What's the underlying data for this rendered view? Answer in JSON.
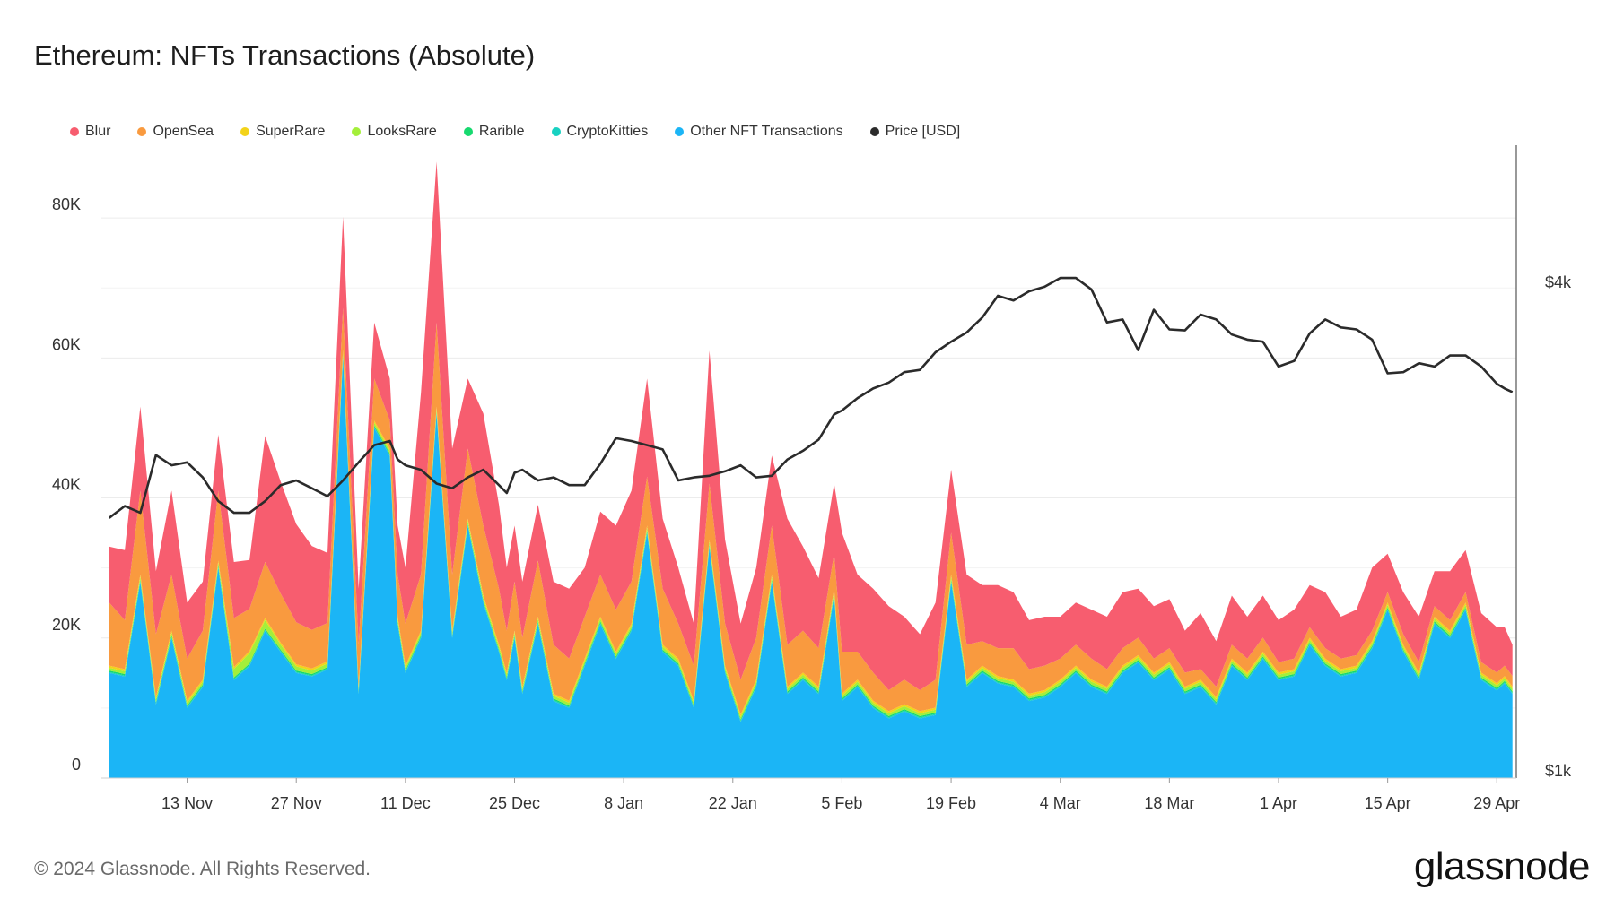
{
  "page": {
    "title": "Ethereum: NFTs Transactions (Absolute)",
    "footer": "© 2024 Glassnode. All Rights Reserved.",
    "brand": "glassnode"
  },
  "legend": [
    {
      "label": "Blur",
      "color": "#f75d6f"
    },
    {
      "label": "OpenSea",
      "color": "#f99a3f"
    },
    {
      "label": "SuperRare",
      "color": "#f3d31a"
    },
    {
      "label": "LooksRare",
      "color": "#a4ef3a"
    },
    {
      "label": "Rarible",
      "color": "#17d96f"
    },
    {
      "label": "CryptoKitties",
      "color": "#18d1c1"
    },
    {
      "label": "Other NFT Transactions",
      "color": "#1bb5f6"
    },
    {
      "label": "Price [USD]",
      "color": "#2b2b2b"
    }
  ],
  "chart_data": {
    "type": "area",
    "stacked": true,
    "grid": true,
    "x_ticks": [
      "13 Nov",
      "27 Nov",
      "11 Dec",
      "25 Dec",
      "8 Jan",
      "22 Jan",
      "5 Feb",
      "19 Feb",
      "4 Mar",
      "18 Mar",
      "1 Apr",
      "15 Apr",
      "29 Apr"
    ],
    "y_left": {
      "ticks": [
        "0",
        "20K",
        "40K",
        "60K",
        "80K"
      ],
      "range": [
        0,
        90000
      ]
    },
    "y_right": {
      "ticks": [
        "$1k",
        "$4k"
      ],
      "scale": "log"
    },
    "x": [
      "2023-11-03",
      "2023-11-05",
      "2023-11-07",
      "2023-11-09",
      "2023-11-11",
      "2023-11-13",
      "2023-11-15",
      "2023-11-17",
      "2023-11-19",
      "2023-11-21",
      "2023-11-23",
      "2023-11-25",
      "2023-11-27",
      "2023-11-29",
      "2023-12-01",
      "2023-12-03",
      "2023-12-05",
      "2023-12-07",
      "2023-12-09",
      "2023-12-10",
      "2023-12-11",
      "2023-12-13",
      "2023-12-15",
      "2023-12-17",
      "2023-12-19",
      "2023-12-21",
      "2023-12-23",
      "2023-12-24",
      "2023-12-25",
      "2023-12-26",
      "2023-12-28",
      "2023-12-30",
      "2024-01-01",
      "2024-01-03",
      "2024-01-05",
      "2024-01-07",
      "2024-01-09",
      "2024-01-11",
      "2024-01-13",
      "2024-01-15",
      "2024-01-17",
      "2024-01-19",
      "2024-01-21",
      "2024-01-23",
      "2024-01-25",
      "2024-01-27",
      "2024-01-29",
      "2024-01-31",
      "2024-02-02",
      "2024-02-04",
      "2024-02-05",
      "2024-02-07",
      "2024-02-09",
      "2024-02-11",
      "2024-02-13",
      "2024-02-15",
      "2024-02-17",
      "2024-02-19",
      "2024-02-21",
      "2024-02-23",
      "2024-02-25",
      "2024-02-27",
      "2024-02-29",
      "2024-03-02",
      "2024-03-04",
      "2024-03-06",
      "2024-03-08",
      "2024-03-10",
      "2024-03-12",
      "2024-03-14",
      "2024-03-16",
      "2024-03-18",
      "2024-03-20",
      "2024-03-22",
      "2024-03-24",
      "2024-03-26",
      "2024-03-28",
      "2024-03-30",
      "2024-04-01",
      "2024-04-03",
      "2024-04-05",
      "2024-04-07",
      "2024-04-09",
      "2024-04-11",
      "2024-04-13",
      "2024-04-15",
      "2024-04-17",
      "2024-04-19",
      "2024-04-21",
      "2024-04-23",
      "2024-04-25",
      "2024-04-27",
      "2024-04-29",
      "2024-04-30",
      "2024-05-01"
    ],
    "series": [
      {
        "name": "Other NFT Transactions",
        "values": [
          15000,
          14500,
          28000,
          10500,
          20000,
          10000,
          13000,
          30000,
          14000,
          16000,
          21000,
          18000,
          15000,
          14500,
          15500,
          60000,
          12000,
          50000,
          46000,
          22000,
          15000,
          20000,
          52000,
          20000,
          36000,
          25000,
          18000,
          14000,
          20000,
          12000,
          22000,
          11000,
          10000,
          16000,
          22000,
          17000,
          21000,
          35000,
          18000,
          16000,
          10000,
          33000,
          15000,
          8000,
          13000,
          28000,
          12000,
          14000,
          12000,
          26000,
          11000,
          13000,
          10000,
          8500,
          9500,
          8500,
          9000,
          28000,
          13000,
          15000,
          13500,
          13000,
          11000,
          11500,
          13000,
          15000,
          13000,
          12000,
          15000,
          16500,
          14000,
          15500,
          12000,
          13000,
          10500,
          16000,
          14000,
          17000,
          14000,
          14500,
          19000,
          16000,
          14500,
          15000,
          18500,
          24000,
          18000,
          14000,
          22000,
          20000,
          24000,
          14000,
          12500,
          13500,
          12000
        ]
      },
      {
        "name": "CryptoKitties",
        "values": [
          150,
          150,
          150,
          150,
          150,
          150,
          150,
          150,
          150,
          150,
          150,
          150,
          150,
          150,
          150,
          150,
          150,
          150,
          150,
          150,
          150,
          150,
          150,
          150,
          150,
          150,
          150,
          150,
          150,
          150,
          150,
          150,
          150,
          150,
          150,
          150,
          150,
          150,
          150,
          150,
          150,
          150,
          150,
          150,
          150,
          150,
          150,
          150,
          150,
          150,
          150,
          150,
          150,
          150,
          150,
          150,
          150,
          150,
          150,
          150,
          150,
          150,
          150,
          150,
          150,
          150,
          150,
          150,
          150,
          150,
          150,
          150,
          150,
          150,
          150,
          150,
          150,
          150,
          150,
          150,
          150,
          150,
          150,
          150,
          150,
          150,
          150,
          150,
          150,
          150,
          150,
          150,
          150,
          150,
          150
        ]
      },
      {
        "name": "Rarible",
        "values": [
          200,
          200,
          200,
          200,
          200,
          200,
          200,
          200,
          200,
          200,
          200,
          200,
          200,
          200,
          200,
          200,
          200,
          200,
          200,
          200,
          200,
          200,
          200,
          200,
          200,
          200,
          200,
          200,
          200,
          200,
          200,
          200,
          200,
          200,
          200,
          200,
          200,
          200,
          200,
          200,
          200,
          200,
          200,
          200,
          200,
          200,
          200,
          200,
          200,
          200,
          200,
          200,
          200,
          200,
          200,
          200,
          200,
          200,
          200,
          200,
          200,
          200,
          200,
          200,
          200,
          200,
          200,
          200,
          200,
          200,
          200,
          200,
          200,
          200,
          200,
          200,
          200,
          200,
          200,
          200,
          200,
          200,
          200,
          200,
          200,
          200,
          200,
          200,
          200,
          200,
          200,
          200,
          200,
          200,
          200
        ]
      },
      {
        "name": "LooksRare",
        "values": [
          400,
          400,
          400,
          400,
          400,
          400,
          400,
          400,
          1200,
          1500,
          1200,
          700,
          600,
          500,
          500,
          500,
          400,
          400,
          400,
          400,
          400,
          400,
          400,
          400,
          400,
          400,
          400,
          400,
          400,
          400,
          400,
          400,
          400,
          400,
          400,
          400,
          400,
          400,
          400,
          400,
          400,
          400,
          400,
          400,
          400,
          400,
          400,
          400,
          400,
          400,
          400,
          400,
          400,
          400,
          400,
          400,
          400,
          400,
          400,
          400,
          400,
          400,
          400,
          400,
          400,
          400,
          400,
          400,
          400,
          400,
          400,
          400,
          400,
          400,
          400,
          400,
          400,
          400,
          400,
          400,
          400,
          400,
          400,
          400,
          400,
          400,
          400,
          400,
          400,
          400,
          400,
          400,
          400,
          400,
          400
        ]
      },
      {
        "name": "SuperRare",
        "values": [
          300,
          300,
          300,
          300,
          300,
          300,
          300,
          300,
          300,
          300,
          300,
          300,
          300,
          300,
          300,
          300,
          300,
          300,
          300,
          300,
          300,
          300,
          300,
          300,
          300,
          300,
          300,
          300,
          300,
          300,
          300,
          300,
          300,
          300,
          300,
          300,
          300,
          300,
          300,
          300,
          300,
          300,
          300,
          300,
          300,
          300,
          300,
          300,
          300,
          300,
          300,
          300,
          300,
          300,
          300,
          300,
          300,
          300,
          300,
          300,
          300,
          300,
          300,
          300,
          300,
          300,
          300,
          300,
          300,
          300,
          300,
          300,
          300,
          300,
          300,
          300,
          300,
          300,
          300,
          300,
          300,
          300,
          300,
          300,
          300,
          300,
          300,
          300,
          300,
          300,
          300,
          300,
          300,
          300,
          300
        ]
      },
      {
        "name": "OpenSea",
        "values": [
          9000,
          7000,
          12000,
          9000,
          8000,
          6000,
          7000,
          10000,
          7000,
          6000,
          8000,
          7000,
          6000,
          5500,
          5500,
          6000,
          6000,
          6000,
          4000,
          6000,
          6000,
          8000,
          12000,
          8000,
          10000,
          10000,
          8000,
          6000,
          7000,
          7000,
          8000,
          7000,
          6000,
          6000,
          6000,
          6000,
          6000,
          7000,
          8000,
          5000,
          5000,
          8000,
          6000,
          5000,
          6000,
          7000,
          6000,
          6000,
          5500,
          5000,
          6000,
          4000,
          4000,
          3000,
          3500,
          3000,
          4000,
          6000,
          5000,
          3500,
          4000,
          4500,
          3500,
          3500,
          3000,
          3000,
          3000,
          2500,
          2500,
          2500,
          2000,
          2000,
          2000,
          1500,
          1500,
          2000,
          2000,
          2000,
          1500,
          1500,
          1500,
          1500,
          1500,
          1500,
          1500,
          1500,
          1500,
          1500,
          1500,
          1500,
          1500,
          1500,
          1500,
          1500,
          1500
        ]
      },
      {
        "name": "Blur",
        "values": [
          8000,
          10000,
          12000,
          9000,
          12000,
          8000,
          7000,
          8000,
          8000,
          7000,
          18000,
          16000,
          14000,
          12000,
          10000,
          13000,
          8000,
          8000,
          6000,
          7000,
          8000,
          26000,
          23000,
          18000,
          10000,
          16000,
          12000,
          9000,
          8000,
          8000,
          8000,
          9000,
          10000,
          7000,
          9000,
          12000,
          13000,
          14000,
          10000,
          8000,
          6000,
          19000,
          12000,
          8000,
          10000,
          10000,
          18000,
          12000,
          10000,
          10000,
          17000,
          11000,
          12000,
          12000,
          9000,
          8000,
          11000,
          9000,
          10000,
          8000,
          9000,
          8000,
          7000,
          7000,
          6000,
          6000,
          7000,
          7500,
          8000,
          7000,
          7500,
          7000,
          6000,
          8000,
          6500,
          7000,
          6000,
          6000,
          6000,
          7000,
          6000,
          8000,
          6000,
          6500,
          9000,
          5500,
          6000,
          6500,
          5000,
          7000,
          6000,
          7000,
          6500,
          5500,
          4500
        ]
      },
      {
        "name": "Price [USD]",
        "axis": "right",
        "values": [
          2050,
          2120,
          2080,
          2450,
          2380,
          2400,
          2300,
          2150,
          2080,
          2080,
          2150,
          2250,
          2280,
          2230,
          2180,
          2280,
          2400,
          2520,
          2550,
          2420,
          2380,
          2350,
          2260,
          2230,
          2300,
          2350,
          2250,
          2200,
          2330,
          2350,
          2280,
          2300,
          2250,
          2250,
          2390,
          2570,
          2550,
          2520,
          2490,
          2280,
          2300,
          2310,
          2340,
          2380,
          2300,
          2310,
          2420,
          2480,
          2560,
          2750,
          2780,
          2880,
          2960,
          3010,
          3100,
          3120,
          3280,
          3380,
          3470,
          3620,
          3850,
          3800,
          3900,
          3950,
          4050,
          4050,
          3920,
          3570,
          3600,
          3300,
          3700,
          3500,
          3490,
          3650,
          3600,
          3450,
          3400,
          3380,
          3150,
          3200,
          3460,
          3600,
          3520,
          3500,
          3400,
          3090,
          3100,
          3180,
          3150,
          3250,
          3250,
          3150,
          3000,
          2960,
          2930
        ]
      }
    ]
  }
}
